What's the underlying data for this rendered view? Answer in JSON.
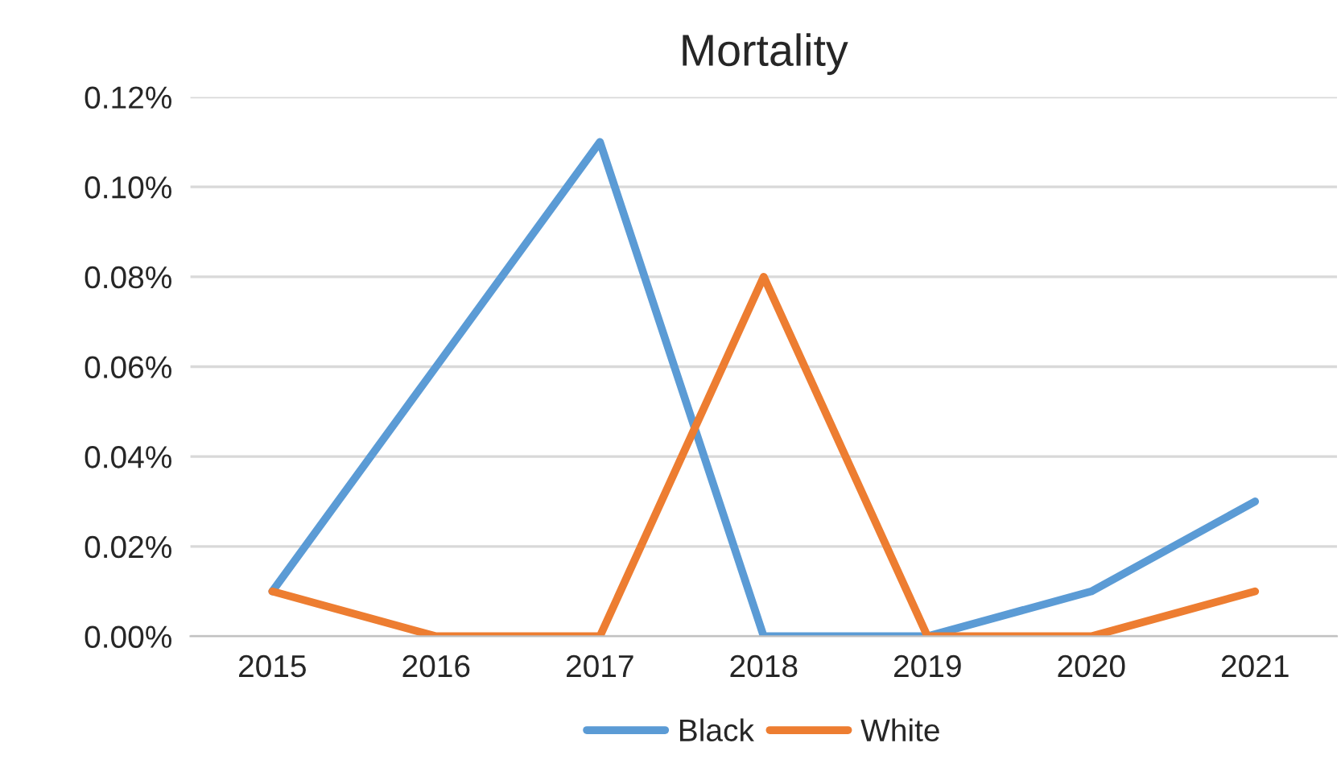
{
  "chart_data": {
    "type": "line",
    "title": "Mortality",
    "categories": [
      "2015",
      "2016",
      "2017",
      "2018",
      "2019",
      "2020",
      "2021"
    ],
    "series": [
      {
        "name": "Black",
        "color": "#5b9bd5",
        "values": [
          0.01,
          0.06,
          0.11,
          0,
          0,
          0.01,
          0.03
        ]
      },
      {
        "name": "White",
        "color": "#ed7d31",
        "values": [
          0.01,
          0,
          0,
          0.08,
          0,
          0,
          0.01
        ]
      }
    ],
    "ylim": [
      0,
      0.12
    ],
    "yticks": [
      {
        "value": 0,
        "label": "0.00%"
      },
      {
        "value": 0.02,
        "label": "0.02%"
      },
      {
        "value": 0.04,
        "label": "0.04%"
      },
      {
        "value": 0.06,
        "label": "0.06%"
      },
      {
        "value": 0.08,
        "label": "0.08%"
      },
      {
        "value": 0.1,
        "label": "0.10%"
      },
      {
        "value": 0.12,
        "label": "0.12%"
      }
    ],
    "grid": "y",
    "legend": "bottom",
    "marker": "none",
    "line_style": "solid"
  }
}
